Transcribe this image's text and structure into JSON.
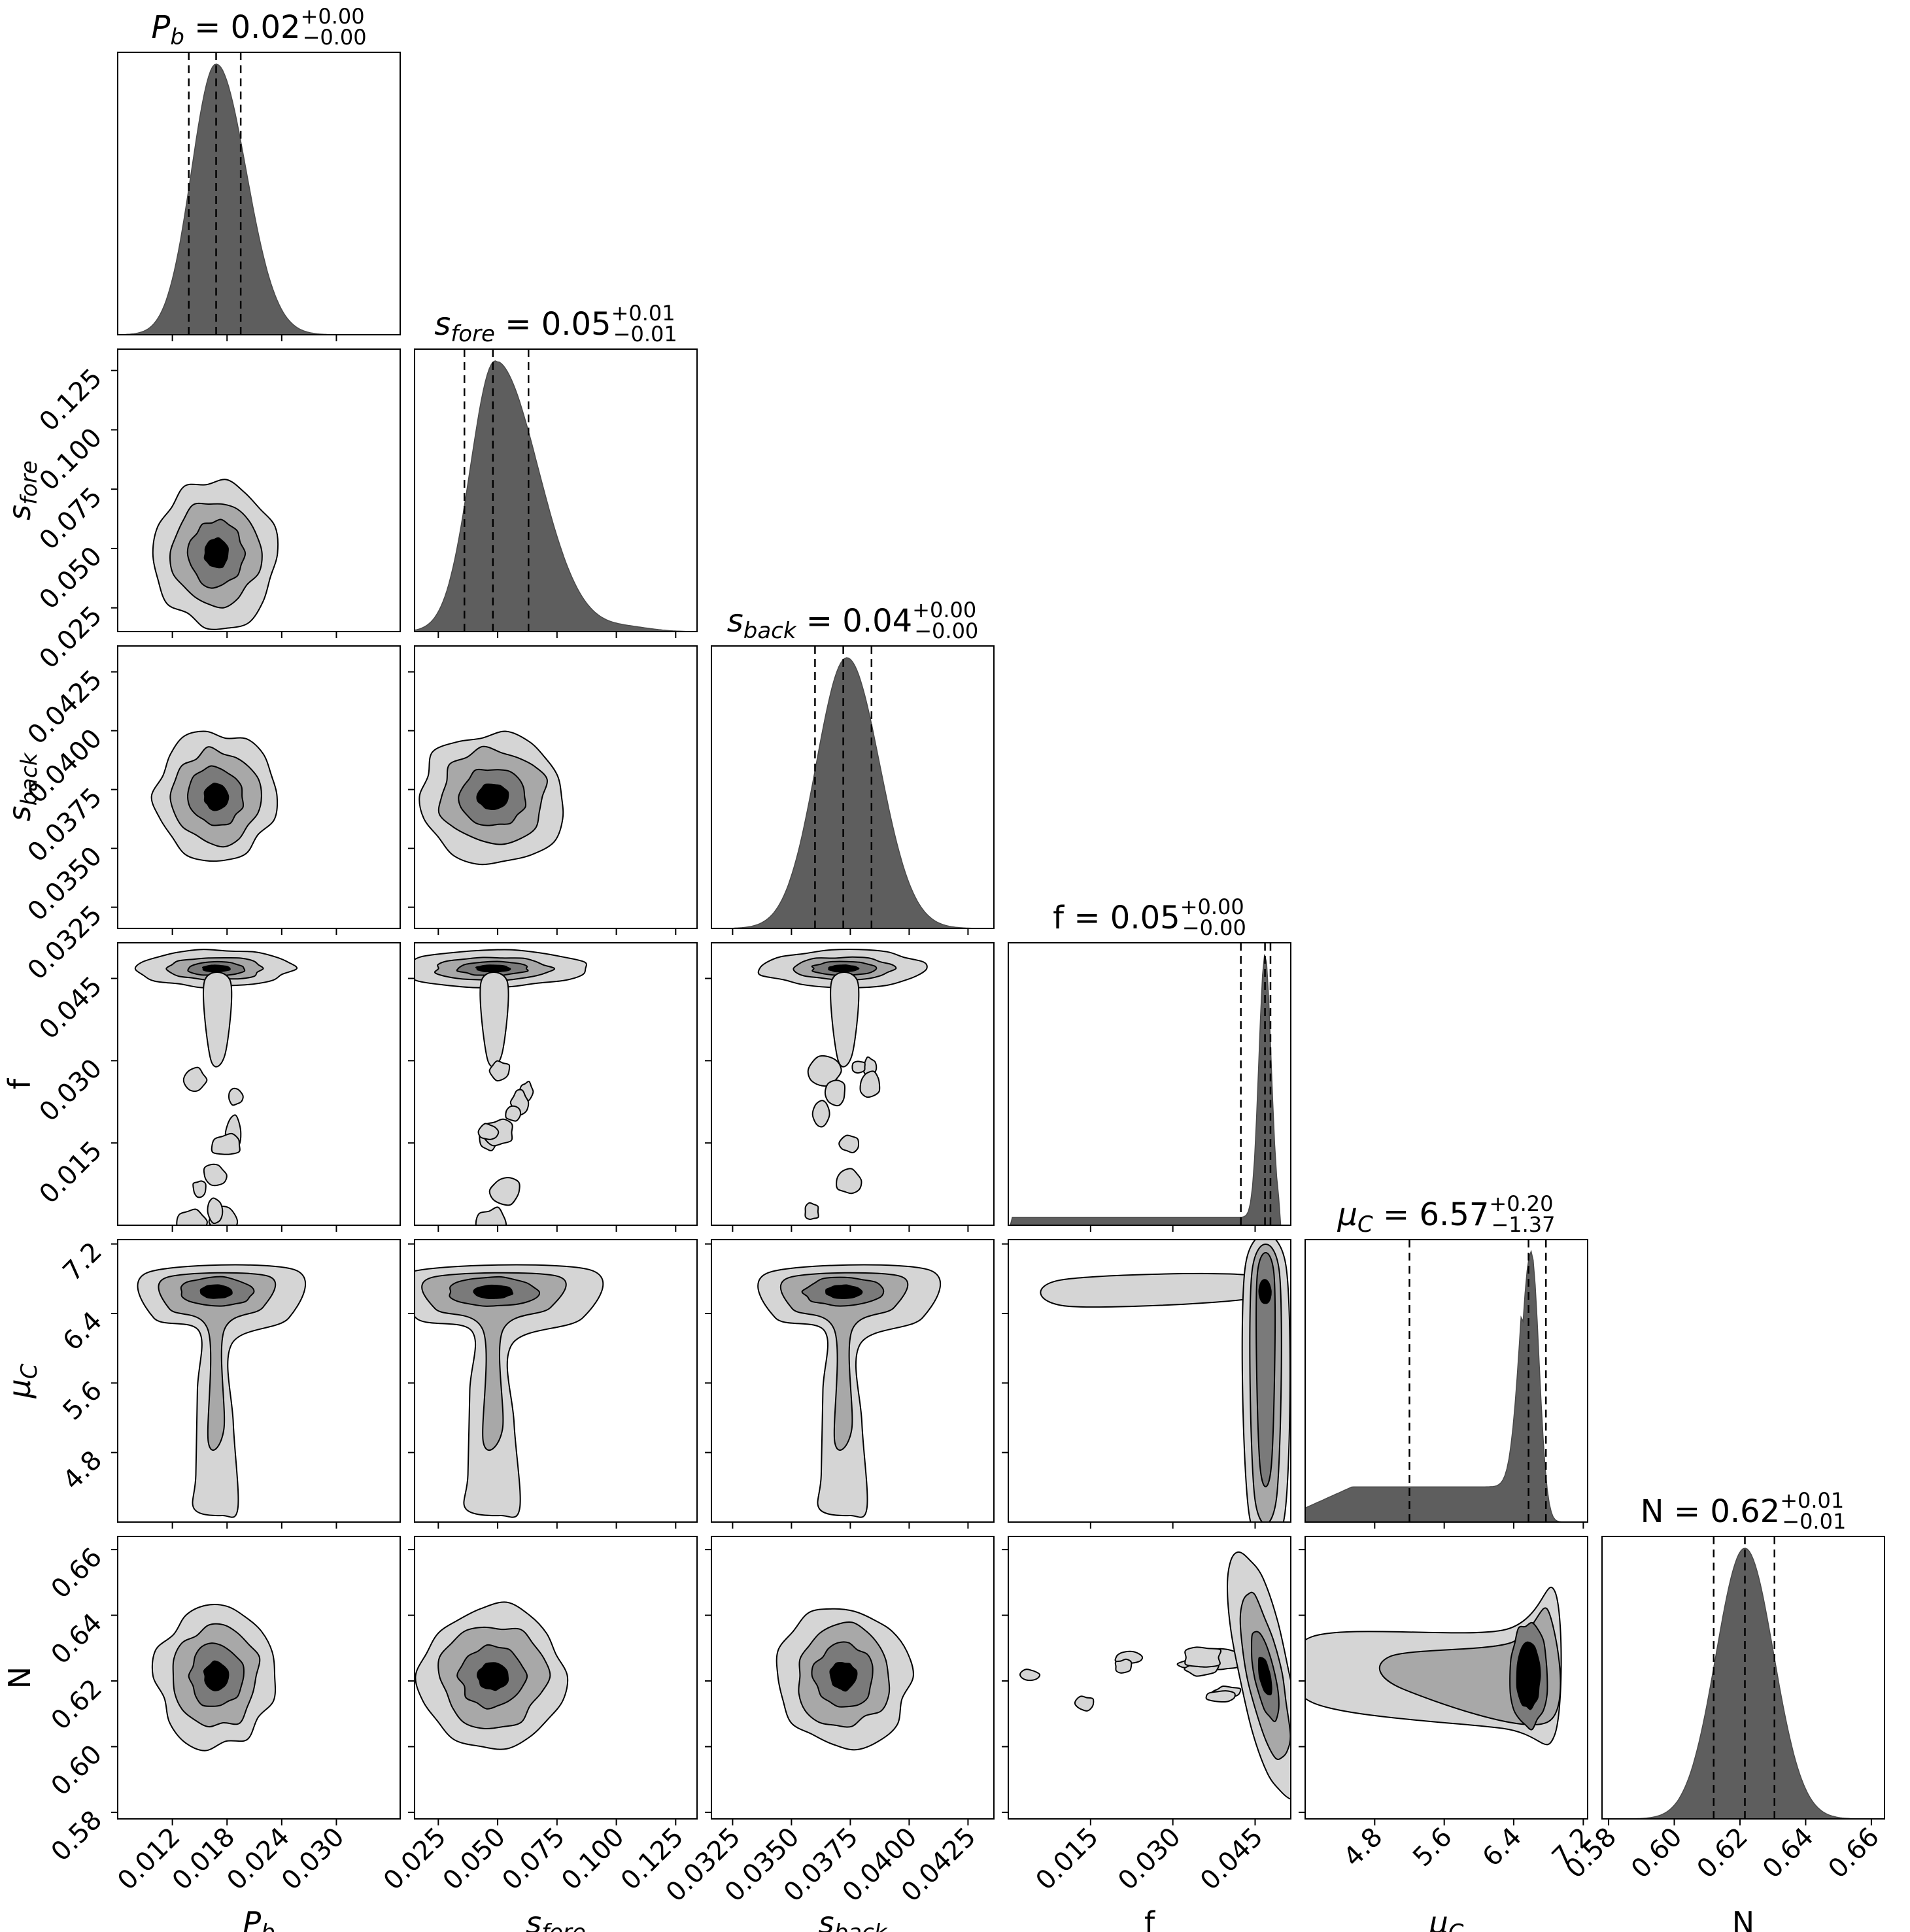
{
  "chart_data": {
    "type": "corner",
    "parameters": [
      {
        "key": "Pb",
        "label": "P",
        "sub": "b",
        "title_base": " = 0.02",
        "err_plus": "+0.00",
        "err_minus": "−0.00",
        "range": [
          0.006,
          0.037
        ],
        "ticks": [
          "0.012",
          "0.018",
          "0.024",
          "0.030"
        ],
        "tick_values": [
          0.012,
          0.018,
          0.024,
          0.03
        ],
        "median": 0.0168,
        "q_low": 0.0138,
        "q_high": 0.0195
      },
      {
        "key": "sfore",
        "label": "s",
        "sub": "fore",
        "title_base": " = 0.05",
        "err_plus": "+0.01",
        "err_minus": "−0.01",
        "range": [
          0.015,
          0.134
        ],
        "ticks": [
          "0.025",
          "0.050",
          "0.075",
          "0.100",
          "0.125"
        ],
        "tick_values": [
          0.025,
          0.05,
          0.075,
          0.1,
          0.125
        ],
        "median": 0.048,
        "q_low": 0.036,
        "q_high": 0.063
      },
      {
        "key": "sback",
        "label": "s",
        "sub": "back",
        "title_base": " = 0.04",
        "err_plus": "+0.00",
        "err_minus": "−0.00",
        "range": [
          0.0316,
          0.0436
        ],
        "ticks": [
          "0.0325",
          "0.0350",
          "0.0375",
          "0.0400",
          "0.0425"
        ],
        "tick_values": [
          0.0325,
          0.035,
          0.0375,
          0.04,
          0.0425
        ],
        "median": 0.0372,
        "q_low": 0.036,
        "q_high": 0.0384
      },
      {
        "key": "f",
        "label": "f",
        "sub": "",
        "title_base": "f = 0.05",
        "err_plus": "+0.00",
        "err_minus": "−0.00",
        "range": [
          0.0,
          0.0515
        ],
        "ticks": [
          "0.015",
          "0.030",
          "0.045"
        ],
        "tick_values": [
          0.015,
          0.03,
          0.045
        ],
        "median": 0.0468,
        "q_low": 0.0424,
        "q_high": 0.0478
      },
      {
        "key": "muC",
        "label": "μ",
        "sub": "C",
        "title_base": " = 6.57",
        "err_plus": "+0.20",
        "err_minus": "−1.37",
        "range": [
          4.0,
          7.25
        ],
        "ticks": [
          "4.8",
          "5.6",
          "6.4",
          "7.2"
        ],
        "tick_values": [
          4.8,
          5.6,
          6.4,
          7.2
        ],
        "median": 6.57,
        "q_low": 5.2,
        "q_high": 6.77
      },
      {
        "key": "N",
        "label": "N",
        "sub": "",
        "title_base": "N = 0.62",
        "err_plus": "+0.01",
        "err_minus": "−0.01",
        "range": [
          0.578,
          0.664
        ],
        "ticks": [
          "0.58",
          "0.60",
          "0.62",
          "0.64",
          "0.66"
        ],
        "tick_values": [
          0.58,
          0.6,
          0.62,
          0.64,
          0.66
        ],
        "median": 0.6215,
        "q_low": 0.612,
        "q_high": 0.6305
      }
    ],
    "contour_levels": [
      "#d5d5d5",
      "#a8a8a8",
      "#7a7a7a",
      "#000000"
    ],
    "grid": false,
    "legend": "none"
  }
}
